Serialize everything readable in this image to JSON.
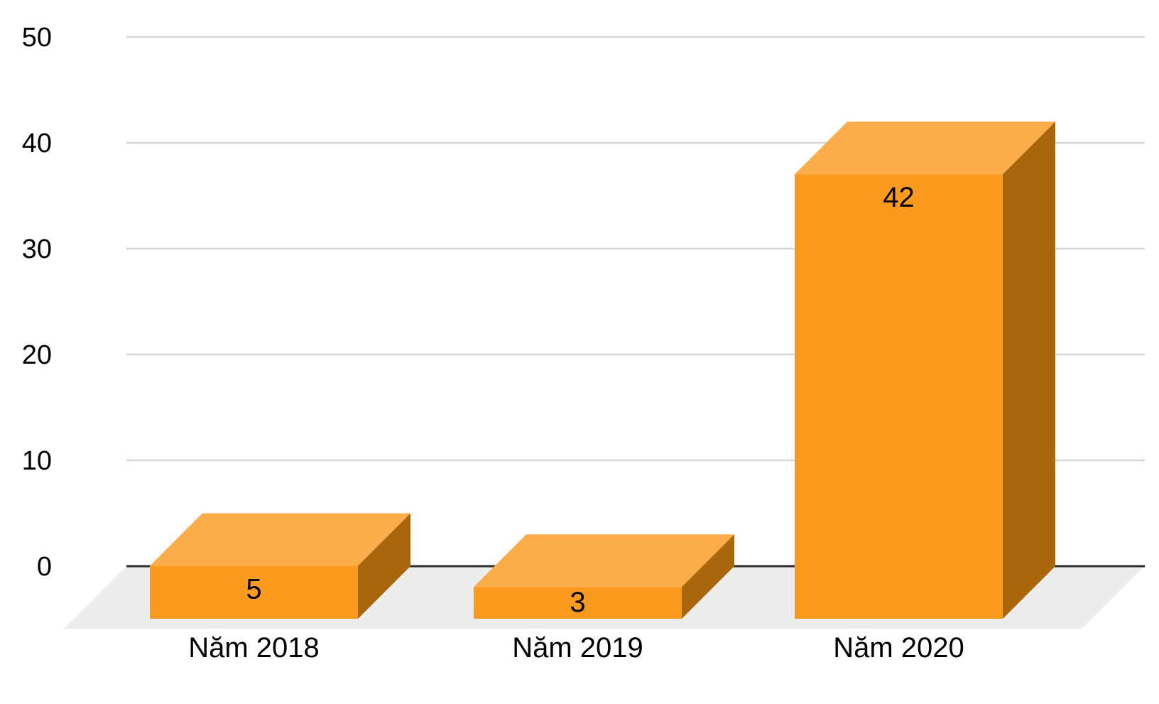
{
  "chart_data": {
    "type": "bar",
    "variant": "3d-column",
    "title": "",
    "xlabel": "",
    "ylabel": "",
    "categories": [
      "Năm 2018",
      "Năm 2019",
      "Năm 2020"
    ],
    "series": [
      {
        "name": "",
        "values": [
          5,
          3,
          42
        ]
      }
    ],
    "data_labels": [
      "5",
      "3",
      "42"
    ],
    "ylim": [
      0,
      50
    ],
    "yticks": [
      0,
      10,
      20,
      30,
      40,
      50
    ],
    "ytick_labels": [
      "0",
      "10",
      "20",
      "30",
      "40",
      "50"
    ],
    "grid": true,
    "legend_position": "none",
    "background_color": "#FFFFFF",
    "colors": {
      "bar_front": "#FA9A1E",
      "bar_top": "#FCAD49",
      "bar_side": "#A8670D",
      "floor": "#EDEDED",
      "gridline": "#D6D6D6",
      "axis_line": "#2B2B2B",
      "label_text": "#000000"
    }
  }
}
